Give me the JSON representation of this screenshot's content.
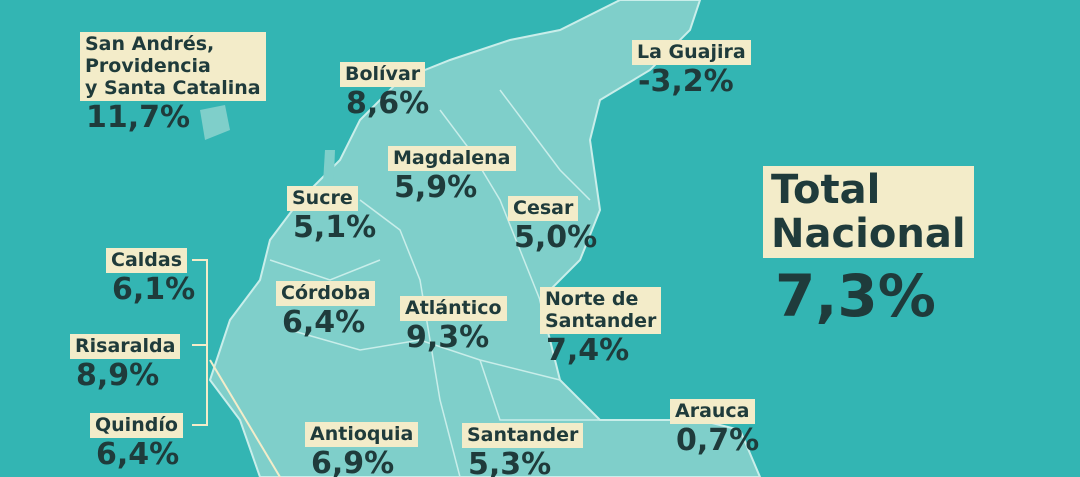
{
  "departments": [
    {
      "name_lines": [
        "San Andrés,",
        "Providencia",
        "y Santa Catalina"
      ],
      "value": "11,7%"
    },
    {
      "name_lines": [
        "Bolívar"
      ],
      "value": "8,6%"
    },
    {
      "name_lines": [
        "La Guajira"
      ],
      "value": "-3,2%"
    },
    {
      "name_lines": [
        "Magdalena"
      ],
      "value": "5,9%"
    },
    {
      "name_lines": [
        "Sucre"
      ],
      "value": "5,1%"
    },
    {
      "name_lines": [
        "Cesar"
      ],
      "value": "5,0%"
    },
    {
      "name_lines": [
        "Caldas"
      ],
      "value": "6,1%"
    },
    {
      "name_lines": [
        "Córdoba"
      ],
      "value": "6,4%"
    },
    {
      "name_lines": [
        "Atlántico"
      ],
      "value": "9,3%"
    },
    {
      "name_lines": [
        "Norte de",
        "Santander"
      ],
      "value": "7,4%"
    },
    {
      "name_lines": [
        "Risaralda"
      ],
      "value": "8,9%"
    },
    {
      "name_lines": [
        "Quindío"
      ],
      "value": "6,4%"
    },
    {
      "name_lines": [
        "Antioquia"
      ],
      "value": "6,9%"
    },
    {
      "name_lines": [
        "Santander"
      ],
      "value": "5,3%"
    },
    {
      "name_lines": [
        "Arauca"
      ],
      "value": "0,7%"
    }
  ],
  "total": {
    "name_lines": [
      "Total",
      "Nacional"
    ],
    "value": "7,3%"
  }
}
